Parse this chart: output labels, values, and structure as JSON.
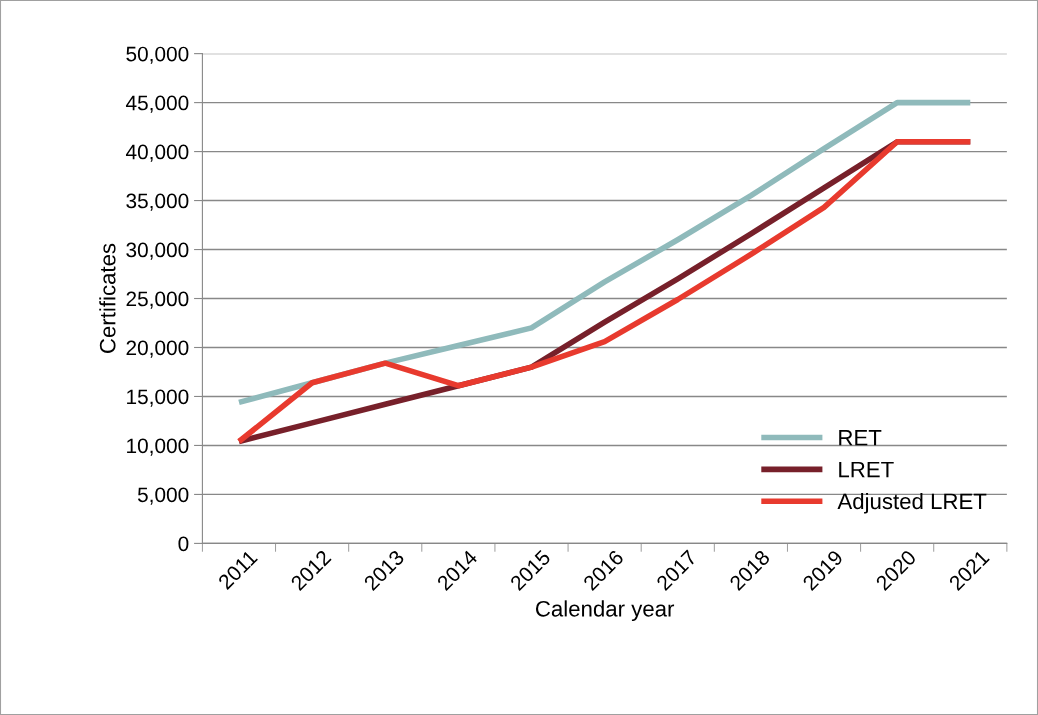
{
  "chart_data": {
    "type": "line",
    "xlabel": "Calendar year",
    "ylabel": "Certificates",
    "categories": [
      "2011",
      "2012",
      "2013",
      "2014",
      "2015",
      "2016",
      "2017",
      "2018",
      "2019",
      "2020",
      "2021"
    ],
    "series": [
      {
        "name": "RET",
        "color": "#8fbabb",
        "values": [
          14400,
          16400,
          18400,
          20200,
          22000,
          26700,
          31000,
          35500,
          40300,
          45000,
          45000
        ]
      },
      {
        "name": "LRET",
        "color": "#77202a",
        "values": [
          10400,
          12300,
          14200,
          16100,
          18000,
          22600,
          27000,
          31600,
          36300,
          41000,
          41000
        ]
      },
      {
        "name": "Adjusted LRET",
        "color": "#e83a2e",
        "values": [
          10400,
          16400,
          18400,
          16100,
          18000,
          20600,
          24900,
          29500,
          34300,
          41000,
          41000
        ]
      }
    ],
    "ylim": [
      0,
      50000
    ],
    "yticks": [
      {
        "value": 0,
        "label": "0"
      },
      {
        "value": 5000,
        "label": "5,000"
      },
      {
        "value": 10000,
        "label": "10,000"
      },
      {
        "value": 15000,
        "label": "15,000"
      },
      {
        "value": 20000,
        "label": "20,000"
      },
      {
        "value": 25000,
        "label": "25,000"
      },
      {
        "value": 30000,
        "label": "30,000"
      },
      {
        "value": 35000,
        "label": "35,000"
      },
      {
        "value": 40000,
        "label": "40,000"
      },
      {
        "value": 45000,
        "label": "45,000"
      },
      {
        "value": 50000,
        "label": "50,000"
      }
    ],
    "grid": "y",
    "legend": "bottom right",
    "marker": "none",
    "line_style": "solid"
  }
}
